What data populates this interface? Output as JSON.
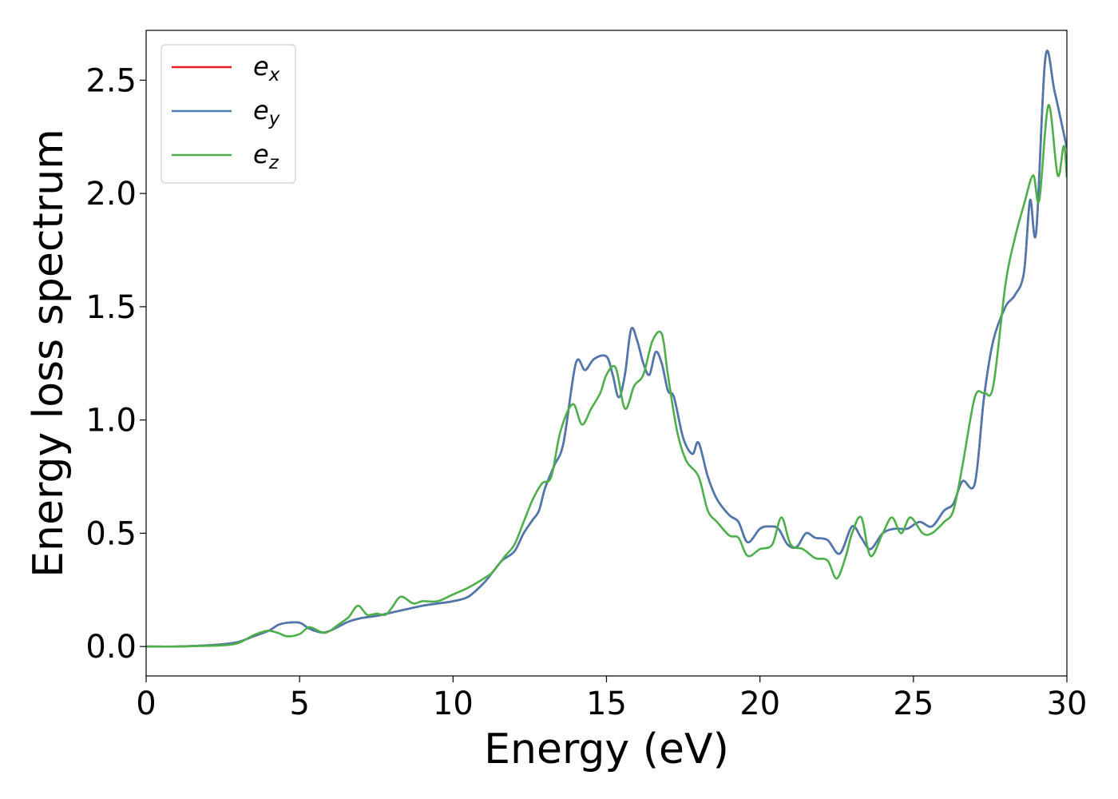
{
  "chart_data": {
    "type": "line",
    "title": "",
    "xlabel": "Energy (eV)",
    "ylabel": "Energy loss spectrum",
    "xlim": [
      0,
      30
    ],
    "ylim": [
      -0.13,
      2.72
    ],
    "xticks": [
      0,
      5,
      10,
      15,
      20,
      25,
      30
    ],
    "xtick_labels": [
      "0",
      "5",
      "10",
      "15",
      "20",
      "25",
      "30"
    ],
    "yticks": [
      0.0,
      0.5,
      1.0,
      1.5,
      2.0,
      2.5
    ],
    "ytick_labels": [
      "0.0",
      "0.5",
      "1.0",
      "1.5",
      "2.0",
      "2.5"
    ],
    "grid": false,
    "legend_position": "top-left",
    "series": [
      {
        "name": "e",
        "sub": "x",
        "color": "#e41a1c",
        "x": [
          0,
          1,
          2,
          2.5,
          3,
          3.5,
          4,
          4.3,
          4.6,
          5,
          5.3,
          5.6,
          5.8,
          6,
          6.3,
          6.6,
          7,
          7.5,
          8,
          8.5,
          9,
          9.5,
          10,
          10.5,
          11,
          11.3,
          11.6,
          12,
          12.3,
          12.6,
          12.8,
          13,
          13.3,
          13.6,
          14,
          14.3,
          14.6,
          15,
          15.2,
          15.4,
          15.6,
          15.8,
          16,
          16.2,
          16.4,
          16.6,
          16.8,
          17,
          17.2,
          17.5,
          17.8,
          18,
          18.3,
          18.6,
          19,
          19.3,
          19.6,
          20,
          20.3,
          20.6,
          20.9,
          21.2,
          21.5,
          21.8,
          22.2,
          22.6,
          23,
          23.3,
          23.6,
          24,
          24.4,
          24.8,
          25.2,
          25.6,
          26,
          26.3,
          26.6,
          27,
          27.3,
          27.6,
          28,
          28.3,
          28.6,
          28.8,
          29,
          29.3,
          29.6,
          30
        ],
        "y": [
          0,
          0,
          0.005,
          0.01,
          0.02,
          0.045,
          0.07,
          0.095,
          0.105,
          0.105,
          0.08,
          0.065,
          0.062,
          0.07,
          0.09,
          0.11,
          0.125,
          0.135,
          0.15,
          0.165,
          0.18,
          0.19,
          0.2,
          0.22,
          0.28,
          0.33,
          0.38,
          0.42,
          0.5,
          0.56,
          0.6,
          0.7,
          0.8,
          0.9,
          1.25,
          1.22,
          1.27,
          1.28,
          1.2,
          1.1,
          1.2,
          1.4,
          1.35,
          1.25,
          1.2,
          1.3,
          1.25,
          1.13,
          1.1,
          0.92,
          0.85,
          0.9,
          0.75,
          0.65,
          0.58,
          0.55,
          0.46,
          0.52,
          0.53,
          0.52,
          0.45,
          0.44,
          0.5,
          0.48,
          0.47,
          0.41,
          0.53,
          0.48,
          0.43,
          0.5,
          0.52,
          0.52,
          0.55,
          0.53,
          0.6,
          0.63,
          0.73,
          0.72,
          1.1,
          1.35,
          1.5,
          1.55,
          1.65,
          1.97,
          1.83,
          2.6,
          2.45,
          2.2
        ]
      },
      {
        "name": "e",
        "sub": "y",
        "color": "#4a79b0",
        "x": [
          0,
          1,
          2,
          2.5,
          3,
          3.5,
          4,
          4.3,
          4.6,
          5,
          5.3,
          5.6,
          5.8,
          6,
          6.3,
          6.6,
          7,
          7.5,
          8,
          8.5,
          9,
          9.5,
          10,
          10.5,
          11,
          11.3,
          11.6,
          12,
          12.3,
          12.6,
          12.8,
          13,
          13.3,
          13.6,
          14,
          14.3,
          14.6,
          15,
          15.2,
          15.4,
          15.6,
          15.8,
          16,
          16.2,
          16.4,
          16.6,
          16.8,
          17,
          17.2,
          17.5,
          17.8,
          18,
          18.3,
          18.6,
          19,
          19.3,
          19.6,
          20,
          20.3,
          20.6,
          20.9,
          21.2,
          21.5,
          21.8,
          22.2,
          22.6,
          23,
          23.3,
          23.6,
          24,
          24.4,
          24.8,
          25.2,
          25.6,
          26,
          26.3,
          26.6,
          27,
          27.3,
          27.6,
          28,
          28.3,
          28.6,
          28.8,
          29,
          29.3,
          29.6,
          30
        ],
        "y": [
          0,
          0,
          0.005,
          0.01,
          0.02,
          0.045,
          0.07,
          0.095,
          0.105,
          0.105,
          0.08,
          0.065,
          0.062,
          0.07,
          0.09,
          0.11,
          0.125,
          0.135,
          0.15,
          0.165,
          0.18,
          0.19,
          0.2,
          0.22,
          0.28,
          0.33,
          0.38,
          0.42,
          0.5,
          0.56,
          0.6,
          0.7,
          0.8,
          0.9,
          1.25,
          1.22,
          1.27,
          1.28,
          1.2,
          1.1,
          1.2,
          1.4,
          1.35,
          1.25,
          1.2,
          1.3,
          1.25,
          1.13,
          1.1,
          0.92,
          0.85,
          0.9,
          0.75,
          0.65,
          0.58,
          0.55,
          0.46,
          0.52,
          0.53,
          0.52,
          0.45,
          0.44,
          0.5,
          0.48,
          0.47,
          0.41,
          0.53,
          0.48,
          0.43,
          0.5,
          0.52,
          0.52,
          0.55,
          0.53,
          0.6,
          0.63,
          0.73,
          0.72,
          1.1,
          1.35,
          1.5,
          1.55,
          1.65,
          1.97,
          1.83,
          2.6,
          2.45,
          2.2
        ]
      },
      {
        "name": "e",
        "sub": "z",
        "color": "#4daf4a",
        "x": [
          0,
          1,
          2,
          2.5,
          3,
          3.5,
          3.8,
          4,
          4.3,
          4.6,
          5,
          5.3,
          5.6,
          5.8,
          6,
          6.3,
          6.6,
          6.9,
          7.2,
          7.5,
          7.8,
          8,
          8.3,
          8.7,
          9,
          9.5,
          10,
          10.5,
          11,
          11.3,
          11.7,
          12,
          12.3,
          12.6,
          12.9,
          13.2,
          13.5,
          13.9,
          14.2,
          14.5,
          14.8,
          15,
          15.3,
          15.6,
          15.9,
          16.2,
          16.5,
          16.8,
          17,
          17.3,
          17.6,
          18,
          18.3,
          18.6,
          19,
          19.3,
          19.6,
          20,
          20.4,
          20.7,
          21,
          21.4,
          21.8,
          22.2,
          22.5,
          22.8,
          23,
          23.3,
          23.6,
          24,
          24.3,
          24.6,
          24.9,
          25.3,
          25.6,
          26,
          26.3,
          26.6,
          27,
          27.3,
          27.6,
          28,
          28.3,
          28.6,
          28.9,
          29.1,
          29.4,
          29.7,
          29.9,
          30
        ],
        "y": [
          0,
          0,
          0.003,
          0.005,
          0.015,
          0.05,
          0.065,
          0.07,
          0.06,
          0.045,
          0.055,
          0.085,
          0.07,
          0.06,
          0.07,
          0.1,
          0.13,
          0.18,
          0.14,
          0.145,
          0.14,
          0.17,
          0.22,
          0.19,
          0.2,
          0.2,
          0.23,
          0.26,
          0.3,
          0.33,
          0.4,
          0.45,
          0.55,
          0.65,
          0.72,
          0.75,
          0.95,
          1.07,
          0.98,
          1.05,
          1.12,
          1.2,
          1.23,
          1.05,
          1.15,
          1.2,
          1.35,
          1.38,
          1.2,
          0.95,
          0.82,
          0.75,
          0.6,
          0.55,
          0.49,
          0.48,
          0.4,
          0.43,
          0.45,
          0.57,
          0.45,
          0.43,
          0.39,
          0.38,
          0.3,
          0.4,
          0.5,
          0.57,
          0.4,
          0.5,
          0.57,
          0.5,
          0.57,
          0.5,
          0.5,
          0.55,
          0.6,
          0.8,
          1.1,
          1.12,
          1.15,
          1.6,
          1.8,
          1.95,
          2.08,
          1.97,
          2.39,
          2.08,
          2.21,
          2.07
        ]
      }
    ]
  }
}
